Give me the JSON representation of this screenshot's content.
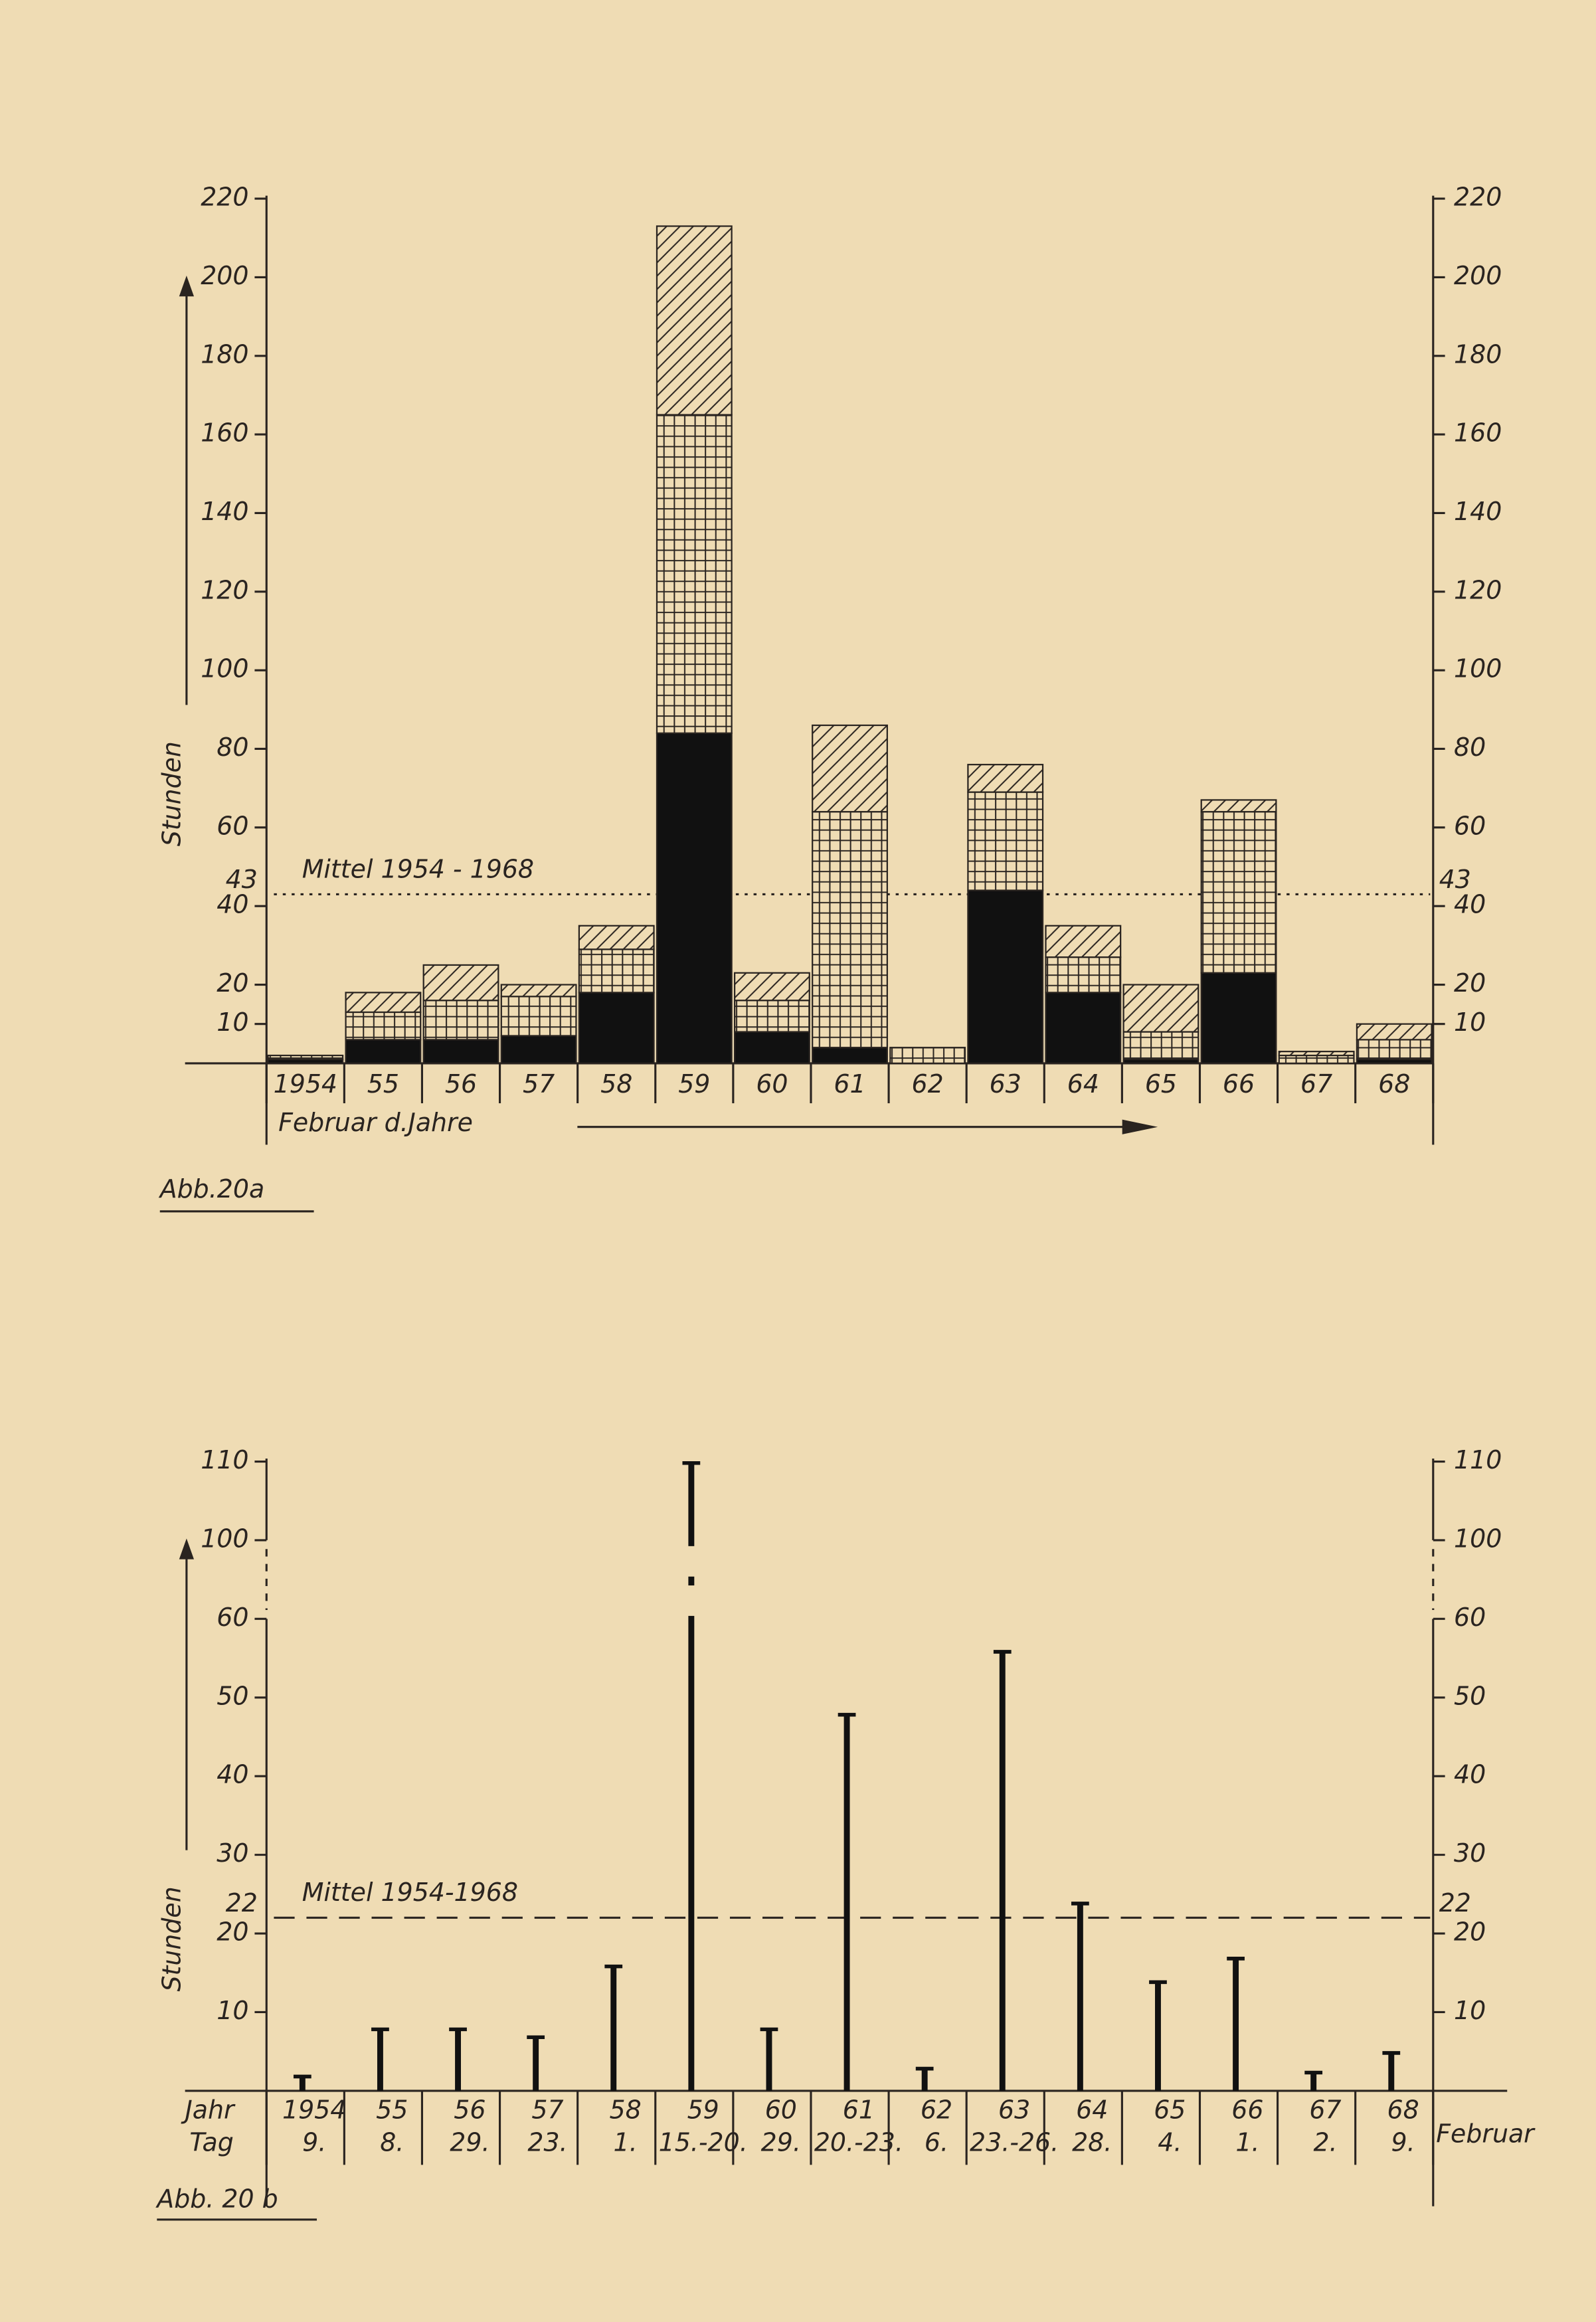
{
  "chart_data": [
    {
      "type": "stacked_bar",
      "caption": "Abb.20a",
      "xlabel": "Februar d.Jahre",
      "ylabel": "Stunden",
      "categories": [
        "1954",
        "55",
        "56",
        "57",
        "58",
        "59",
        "60",
        "61",
        "62",
        "63",
        "64",
        "65",
        "66",
        "67",
        "68"
      ],
      "series": [
        {
          "color": "#111111",
          "fill": "solid",
          "values": [
            1,
            6,
            6,
            7,
            18,
            84,
            8,
            4,
            0,
            44,
            18,
            1,
            23,
            0,
            1
          ]
        },
        {
          "color": "#111111",
          "fill": "grid",
          "values": [
            1,
            7,
            10,
            10,
            11,
            81,
            8,
            60,
            4,
            25,
            9,
            7,
            41,
            2,
            5
          ]
        },
        {
          "color": "#111111",
          "fill": "hatch",
          "values": [
            0,
            5,
            9,
            3,
            6,
            48,
            7,
            22,
            0,
            7,
            8,
            12,
            3,
            1,
            4
          ]
        }
      ],
      "ylim": [
        0,
        220
      ],
      "yticks": [
        10,
        20,
        40,
        60,
        80,
        100,
        120,
        140,
        160,
        180,
        200,
        220
      ],
      "mean": {
        "value": 43,
        "label": "Mittel 1954 - 1968"
      }
    },
    {
      "type": "needle",
      "caption": "Abb. 20 b",
      "ylabel": "Stunden",
      "row_labels": [
        "Jahr",
        "Tag"
      ],
      "categories": [
        "1954",
        "55",
        "56",
        "57",
        "58",
        "59",
        "60",
        "61",
        "62",
        "63",
        "64",
        "65",
        "66",
        "67",
        "68"
      ],
      "day_labels": [
        "9.",
        "8.",
        "29.",
        "23.",
        "1.",
        "15.-20.",
        "29.",
        "20.-23.",
        "6.",
        "23.-26.",
        "28.",
        "4.",
        "1.",
        "2.",
        "9."
      ],
      "month_label": "Februar",
      "values": [
        2,
        8,
        8,
        7,
        16,
        110,
        8,
        48,
        3,
        56,
        24,
        14,
        17,
        2.5,
        5
      ],
      "color": "#111111",
      "ylim": [
        0,
        110
      ],
      "yticks": [
        10,
        20,
        30,
        40,
        50,
        60,
        100,
        110
      ],
      "mean": {
        "value": 22,
        "label": "Mittel 1954-1968"
      }
    }
  ]
}
